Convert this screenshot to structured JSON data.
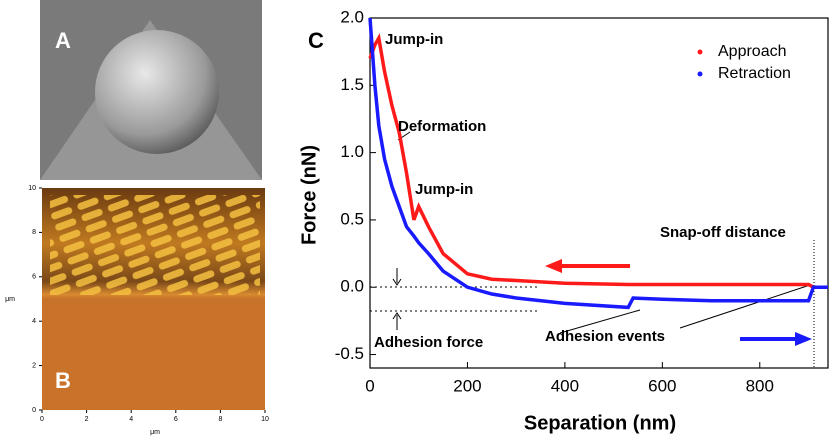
{
  "panels": {
    "a_label": "A",
    "b_label": "B",
    "c_label": "C"
  },
  "panel_b": {
    "xticks": [
      0,
      2,
      4,
      6,
      8,
      10
    ],
    "yticks": [
      0,
      2,
      4,
      6,
      8,
      10
    ],
    "xlabel": "μm",
    "ylabel": "μm"
  },
  "chart_data": {
    "type": "line",
    "xlabel": "Separation (nm)",
    "ylabel": "Force (nN)",
    "x": [
      0,
      10,
      18,
      30,
      45,
      60,
      75,
      90,
      100,
      120,
      150,
      200,
      250,
      300,
      400,
      530,
      540,
      600,
      700,
      800,
      900,
      910,
      940
    ],
    "series": [
      {
        "name": "Approach",
        "color": "#ff1a1a",
        "values": [
          1.7,
          1.8,
          1.85,
          1.6,
          1.35,
          1.15,
          0.85,
          0.5,
          0.6,
          0.45,
          0.25,
          0.1,
          0.06,
          0.05,
          0.03,
          0.02,
          0.02,
          0.02,
          0.02,
          0.02,
          0.02,
          0.0,
          0.0
        ]
      },
      {
        "name": "Retraction",
        "color": "#1a1aff",
        "values": [
          2.0,
          1.5,
          1.2,
          0.95,
          0.75,
          0.6,
          0.45,
          0.38,
          0.33,
          0.25,
          0.12,
          0.0,
          -0.05,
          -0.08,
          -0.12,
          -0.15,
          -0.08,
          -0.09,
          -0.1,
          -0.1,
          -0.1,
          0.0,
          0.0
        ]
      }
    ],
    "xlim": [
      0,
      940
    ],
    "ylim": [
      -0.6,
      2.0
    ],
    "xticks": [
      0,
      200,
      400,
      600,
      800
    ],
    "yticks": [
      {
        "value": -0.5,
        "label": "-0.5"
      },
      {
        "value": 0,
        "label": "0.0"
      },
      {
        "value": 0.5,
        "label": "0.5"
      },
      {
        "value": 1,
        "label": "1.0"
      },
      {
        "value": 1.5,
        "label": "1.5"
      },
      {
        "value": 2,
        "label": "2.0"
      }
    ],
    "legend": "top-right",
    "annotations": [
      "Jump-in",
      "Deformation",
      "Jump-in",
      "Snap-off distance",
      "Adhesion events",
      "Adhesion force"
    ]
  }
}
